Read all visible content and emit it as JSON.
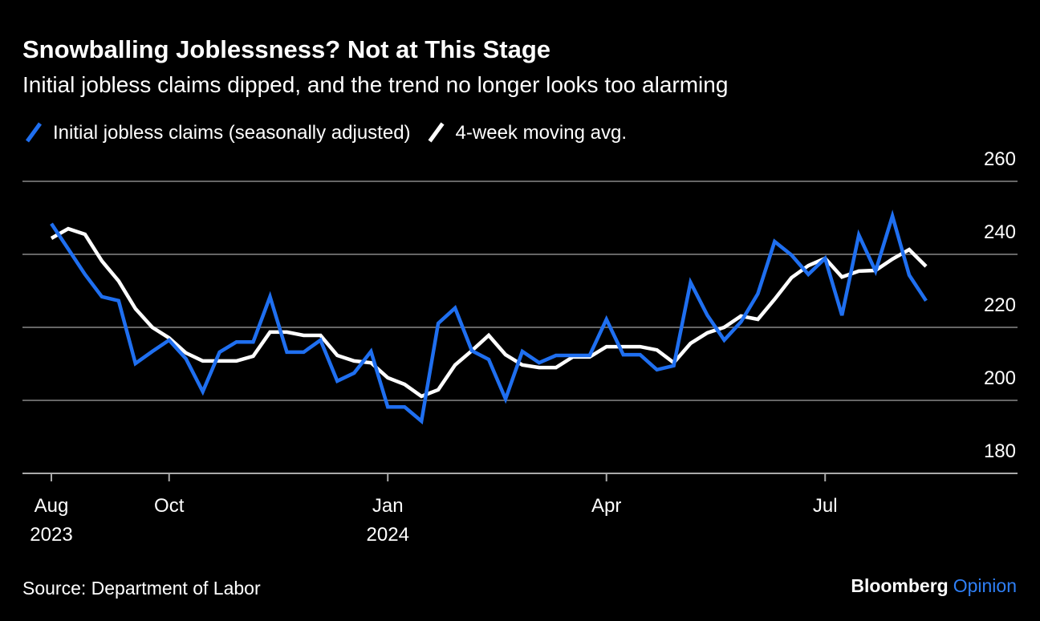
{
  "chart_data": {
    "type": "line",
    "title": "Snowballing Joblessness? Not at This Stage",
    "subtitle": "Initial jobless claims dipped, and the trend no longer looks too alarming",
    "source": "Source: Department of Labor",
    "brand": {
      "name": "Bloomberg",
      "section": "Opinion"
    },
    "categories": [
      "Aug",
      null,
      null,
      null,
      null,
      null,
      null,
      "Oct",
      null,
      null,
      null,
      null,
      null,
      null,
      null,
      null,
      null,
      null,
      null,
      null,
      "Jan",
      null,
      null,
      null,
      null,
      null,
      null,
      null,
      null,
      null,
      null,
      null,
      null,
      "Apr",
      null,
      null,
      null,
      null,
      null,
      null,
      null,
      null,
      null,
      null,
      null,
      null,
      "Jul",
      null,
      null,
      null,
      null,
      null,
      null
    ],
    "years": [
      "2023",
      null,
      null,
      null,
      null,
      null,
      null,
      null,
      null,
      null,
      null,
      null,
      null,
      null,
      null,
      null,
      null,
      null,
      null,
      null,
      "2024",
      null,
      null,
      null,
      null,
      null,
      null,
      null,
      null,
      null,
      null,
      null,
      null,
      null,
      null,
      null,
      null,
      null,
      null,
      null,
      null,
      null,
      null,
      null,
      null,
      null,
      null,
      null,
      null,
      null,
      null,
      null,
      null
    ],
    "series": [
      {
        "name": "Initial jobless claims (seasonally adjusted)",
        "color": "#1f6ff0",
        "values": [
          248.4,
          241.5,
          234.5,
          228.4,
          227.3,
          210.1,
          213.4,
          216.5,
          211.4,
          202.4,
          213.2,
          216.0,
          216.0,
          228.4,
          213.2,
          213.2,
          216.5,
          205.3,
          207.5,
          213.4,
          198.2,
          198.2,
          194.3,
          221.1,
          225.3,
          213.6,
          211.2,
          200.4,
          213.4,
          210.3,
          212.3,
          212.3,
          212.3,
          222.2,
          212.5,
          212.5,
          208.4,
          209.5,
          232.3,
          223.3,
          216.5,
          221.5,
          229.2,
          243.5,
          239.8,
          234.5,
          238.9,
          223.3,
          245.3,
          235.4,
          250.5,
          234.3,
          227.3
        ]
      },
      {
        "name": "4-week moving avg.",
        "color": "#ffffff",
        "values": [
          244.4,
          247.0,
          245.5,
          238.2,
          232.7,
          225.1,
          220.0,
          217.1,
          213.0,
          210.8,
          210.8,
          210.8,
          212.1,
          218.7,
          218.7,
          217.8,
          217.8,
          212.3,
          210.8,
          210.3,
          206.2,
          204.4,
          201.1,
          202.9,
          209.7,
          213.6,
          217.8,
          212.5,
          209.7,
          209.0,
          209.0,
          211.9,
          211.9,
          214.7,
          214.7,
          214.7,
          213.8,
          210.3,
          215.6,
          218.5,
          220.0,
          223.1,
          222.2,
          227.7,
          233.6,
          236.9,
          238.9,
          233.8,
          235.4,
          235.6,
          238.7,
          241.3,
          236.7
        ]
      }
    ],
    "ylim": [
      180,
      260
    ],
    "yticks": [
      180,
      200,
      220,
      240,
      260
    ],
    "grid": true
  }
}
